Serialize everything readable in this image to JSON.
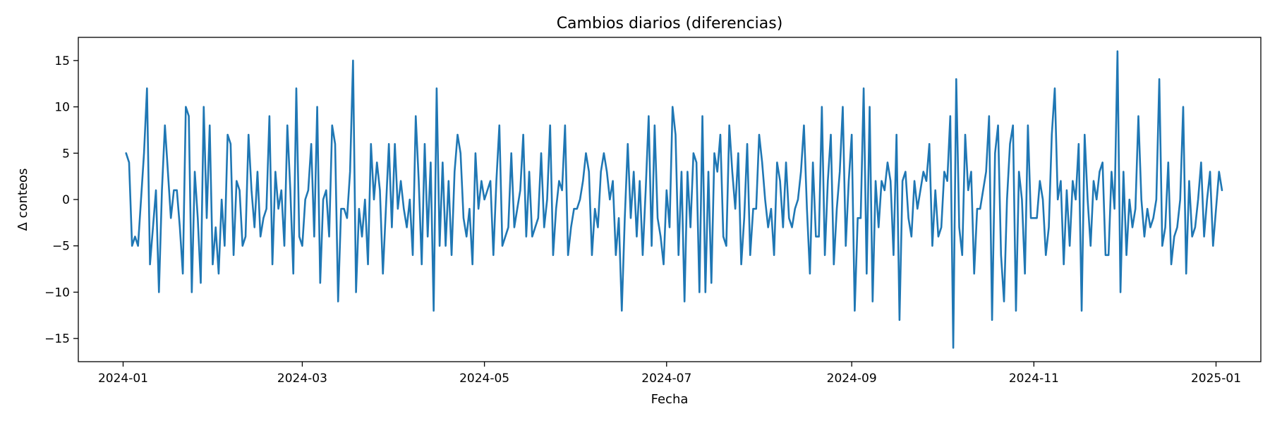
{
  "chart_data": {
    "type": "line",
    "title": "Cambios diarios (diferencias)",
    "xlabel": "Fecha",
    "ylabel": "Δ conteos",
    "x_type": "date",
    "x_start": "2024-01-02",
    "x_step_days": 1,
    "xlim": [
      "2023-12-17",
      "2025-01-16"
    ],
    "ylim": [
      -17.5,
      17.5
    ],
    "x_ticks": [
      "2024-01-01",
      "2024-03-01",
      "2024-05-01",
      "2024-07-01",
      "2024-09-01",
      "2024-11-01",
      "2025-01-01"
    ],
    "x_tick_labels": [
      "2024-01",
      "2024-03",
      "2024-05",
      "2024-07",
      "2024-09",
      "2024-11",
      "2025-01"
    ],
    "y_ticks": [
      -15,
      -10,
      -5,
      0,
      5,
      10,
      15
    ],
    "y_tick_labels": [
      "−15",
      "−10",
      "−5",
      "0",
      "5",
      "10",
      "15"
    ],
    "grid": false,
    "legend": "none",
    "series": [
      {
        "color": "#1f77b4",
        "values": [
          5,
          4,
          -5,
          -4,
          -5,
          0,
          5,
          12,
          -7,
          -3,
          1,
          -10,
          1,
          8,
          3,
          -2,
          1,
          1,
          -3,
          -8,
          10,
          9,
          -10,
          3,
          -2,
          -9,
          10,
          -2,
          8,
          -7,
          -3,
          -8,
          0,
          -5,
          7,
          6,
          -6,
          2,
          1,
          -5,
          -4,
          7,
          1,
          -3,
          3,
          -4,
          -2,
          -1,
          9,
          -7,
          3,
          -1,
          1,
          -5,
          8,
          1,
          -8,
          12,
          -4,
          -5,
          0,
          1,
          6,
          -4,
          10,
          -9,
          0,
          1,
          -4,
          8,
          6,
          -11,
          -1,
          -1,
          -2,
          3,
          15,
          -10,
          -1,
          -4,
          0,
          -7,
          6,
          0,
          4,
          1,
          -8,
          -1,
          6,
          -3,
          6,
          -1,
          2,
          -1,
          -3,
          0,
          -6,
          9,
          2,
          -7,
          6,
          -4,
          4,
          -12,
          12,
          -5,
          4,
          -5,
          2,
          -6,
          3,
          7,
          5,
          -2,
          -4,
          -1,
          -7,
          5,
          -1,
          2,
          0,
          1,
          2,
          -6,
          2,
          8,
          -5,
          -4,
          -3,
          5,
          -3,
          -1,
          1,
          7,
          -4,
          3,
          -4,
          -3,
          -2,
          5,
          -3,
          0,
          8,
          -6,
          -1,
          2,
          1,
          8,
          -6,
          -3,
          -1,
          -1,
          0,
          2,
          5,
          3,
          -6,
          -1,
          -3,
          3,
          5,
          3,
          0,
          2,
          -6,
          -2,
          -12,
          -2,
          6,
          -2,
          3,
          -4,
          2,
          -6,
          1,
          9,
          -5,
          8,
          -2,
          -4,
          -7,
          1,
          -3,
          10,
          7,
          -6,
          3,
          -11,
          3,
          -3,
          5,
          4,
          -10,
          9,
          -10,
          3,
          -9,
          5,
          3,
          7,
          -4,
          -5,
          8,
          3,
          -1,
          5,
          -7,
          -2,
          6,
          -6,
          -1,
          -1,
          7,
          4,
          0,
          -3,
          -1,
          -6,
          4,
          2,
          -3,
          4,
          -2,
          -3,
          -1,
          0,
          3,
          8,
          -1,
          -8,
          4,
          -4,
          -4,
          10,
          -6,
          2,
          7,
          -7,
          -1,
          3,
          10,
          -5,
          2,
          7,
          -12,
          -2,
          -2,
          12,
          -8,
          10,
          -11,
          2,
          -3,
          2,
          1,
          4,
          2,
          -6,
          7,
          -13,
          2,
          3,
          -2,
          -4,
          2,
          -1,
          1,
          3,
          2,
          6,
          -5,
          1,
          -4,
          -3,
          3,
          2,
          9,
          -16,
          13,
          -3,
          -6,
          7,
          1,
          3,
          -8,
          -1,
          -1,
          1,
          3,
          9,
          -13,
          5,
          8,
          -6,
          -11,
          0,
          6,
          8,
          -12,
          3,
          0,
          -8,
          8,
          -2,
          -2,
          -2,
          2,
          0,
          -6,
          -3,
          7,
          12,
          0,
          2,
          -7,
          1,
          -5,
          2,
          0,
          6,
          -12,
          7,
          0,
          -5,
          2,
          0,
          3,
          4,
          -6,
          -6,
          3,
          -1,
          16,
          -10,
          3,
          -6,
          0,
          -3,
          -1,
          9,
          0,
          -4,
          -1,
          -3,
          -2,
          0,
          13,
          -5,
          -3,
          4,
          -7,
          -4,
          -3,
          0,
          10,
          -8,
          2,
          -4,
          -3,
          0,
          4,
          -4,
          0,
          3,
          -5,
          -1,
          3,
          1
        ]
      }
    ]
  }
}
